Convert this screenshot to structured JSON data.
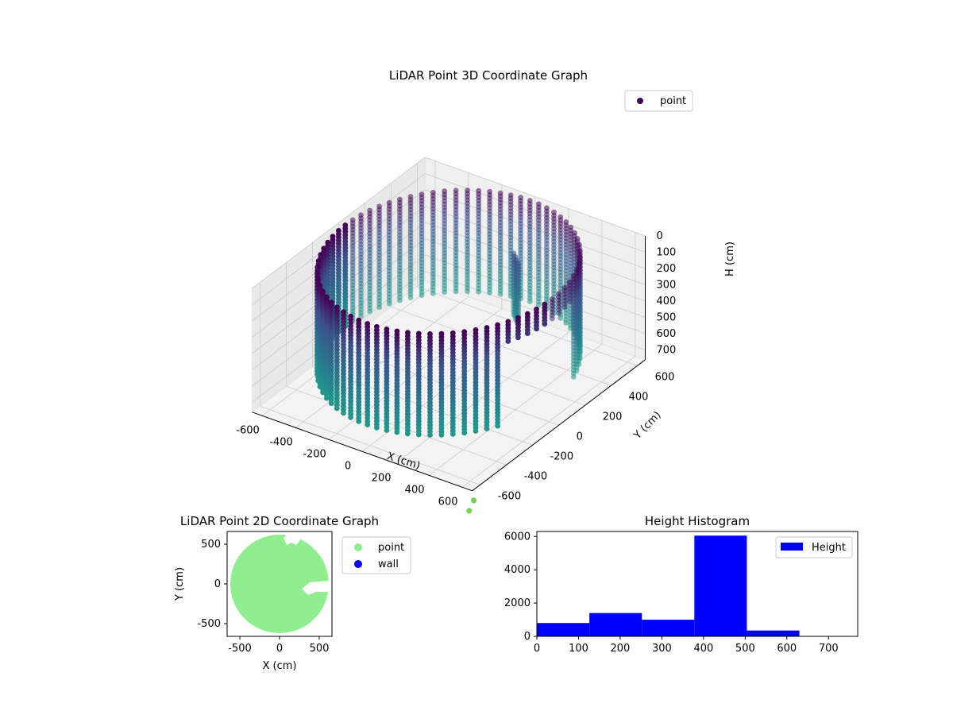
{
  "colors": {
    "viridis_dark": "#440154",
    "viridis_mid": "#31688e",
    "viridis_teal": "#2a9d8f",
    "point_green": "#90ee90",
    "wall_blue": "#0000ff",
    "hist_blue": "#0000ff",
    "axes_edge": "#000000",
    "pane_light": "#f2f2f2",
    "grid": "#cccccc"
  },
  "chart_data": [
    {
      "type": "scatter",
      "projection": "3d",
      "title": "LiDAR Point 3D Coordinate Graph",
      "xlabel": "X (cm)",
      "ylabel": "Y (cm)",
      "zlabel": "H (cm)",
      "xlim": [
        -660,
        660
      ],
      "ylim": [
        -660,
        660
      ],
      "zlim": [
        0,
        760
      ],
      "z_inverted": true,
      "xticks": [
        -600,
        -400,
        -200,
        0,
        200,
        400,
        600
      ],
      "yticks": [
        -600,
        -400,
        -200,
        0,
        200,
        400,
        600
      ],
      "zticks": [
        0,
        100,
        200,
        300,
        400,
        500,
        600,
        700
      ],
      "legend": [
        {
          "label": "point",
          "color": "#440154",
          "marker": "circle"
        }
      ],
      "legend_position": "top-right",
      "colormap": "viridis",
      "grid": true,
      "structure": {
        "shape": "cylindrical wall of points",
        "radius": 620,
        "height_range": [
          0,
          620
        ],
        "vertical_columns": 72,
        "gap_angle_deg": [
          -25,
          15
        ]
      },
      "outliers": [
        {
          "x": 700,
          "y": -700,
          "h": 780
        },
        {
          "x": 720,
          "y": -760,
          "h": 800
        }
      ]
    },
    {
      "type": "scatter",
      "title": "LiDAR Point 2D Coordinate Graph",
      "xlabel": "X (cm)",
      "ylabel": "Y (cm)",
      "xlim": [
        -660,
        660
      ],
      "ylim": [
        -660,
        660
      ],
      "xticks": [
        -500,
        0,
        500
      ],
      "yticks": [
        -500,
        0,
        500
      ],
      "legend": [
        {
          "label": "point",
          "color": "#90ee90"
        },
        {
          "label": "wall",
          "color": "#0000ff"
        }
      ],
      "legend_position": "outside-right",
      "grid": false,
      "region": {
        "shape": "filled disc",
        "center": [
          0,
          0
        ],
        "radius": 620
      },
      "notches": [
        {
          "shape": "blob",
          "approx_x": 150,
          "approx_y": 520
        },
        {
          "shape": "wedge",
          "approx_x": 560,
          "approx_y": 0
        }
      ]
    },
    {
      "type": "bar",
      "histogram": true,
      "title": "Height Histogram",
      "xlabel": "",
      "ylabel": "",
      "bins": [
        0,
        126,
        252,
        378,
        504,
        630,
        756
      ],
      "counts": [
        800,
        1400,
        1000,
        6050,
        350,
        0
      ],
      "xlim": [
        0,
        770
      ],
      "ylim": [
        0,
        6300
      ],
      "xticks": [
        0,
        100,
        200,
        300,
        400,
        500,
        600,
        700
      ],
      "yticks": [
        0,
        2000,
        4000,
        6000
      ],
      "series": [
        {
          "name": "Height",
          "color": "#0000ff"
        }
      ],
      "legend_position": "top-right",
      "grid": false
    }
  ]
}
